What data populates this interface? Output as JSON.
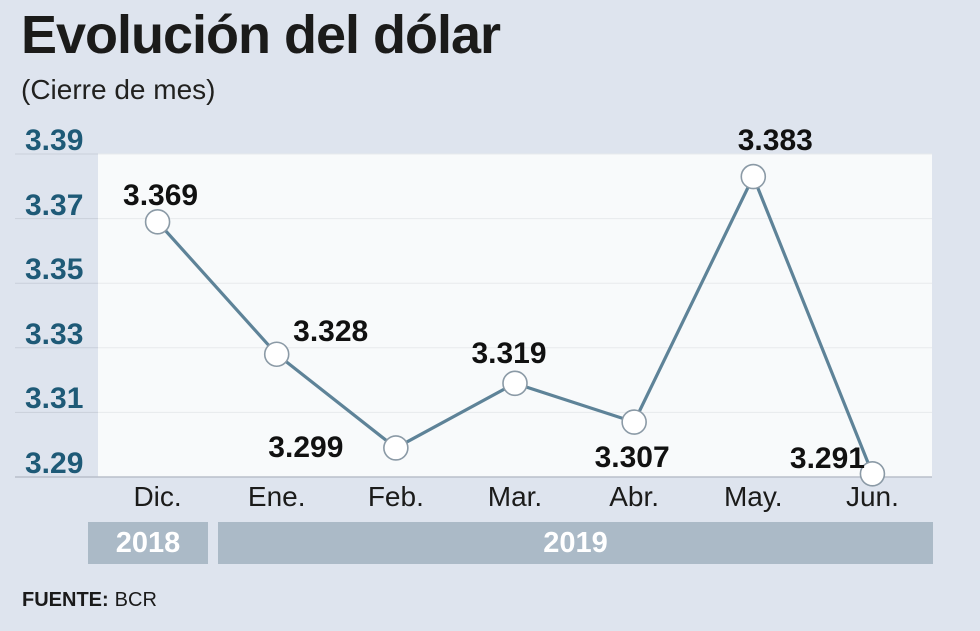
{
  "title": "Evolución del dólar",
  "subtitle": "(Cierre de mes)",
  "source_label": "FUENTE:",
  "source_value": "BCR",
  "chart_data": {
    "type": "line",
    "title": "Evolución del dólar",
    "subtitle": "(Cierre de mes)",
    "categories": [
      "Dic.",
      "Ene.",
      "Feb.",
      "Mar.",
      "Abr.",
      "May.",
      "Jun."
    ],
    "values": [
      3.369,
      3.328,
      3.299,
      3.319,
      3.307,
      3.383,
      3.291
    ],
    "point_labels": [
      "3.369",
      "3.328",
      "3.299",
      "3.319",
      "3.307",
      "3.383",
      "3.291"
    ],
    "yticks": [
      "3.39",
      "3.37",
      "3.35",
      "3.33",
      "3.31",
      "3.29"
    ],
    "ylim": [
      3.29,
      3.39
    ],
    "grid": true,
    "legend": "none",
    "year_bands": [
      {
        "label": "2018",
        "months": [
          "Dic."
        ]
      },
      {
        "label": "2019",
        "months": [
          "Ene.",
          "Feb.",
          "Mar.",
          "Abr.",
          "May.",
          "Jun."
        ]
      }
    ],
    "source": "FUENTE: BCR",
    "colors": {
      "background": "#dee4ee",
      "plot_bg": "#f8fafb",
      "grid_inner": "#e7eaec",
      "grid_outer": "#c9cfda",
      "axis": "#b9bfca",
      "line": "#5e8398",
      "marker_fill": "#ffffff",
      "marker_stroke": "#8b9aa6",
      "ytick_text": "#1e5a77",
      "band_bg": "#abbac7",
      "band_text": "#ffffff"
    }
  }
}
